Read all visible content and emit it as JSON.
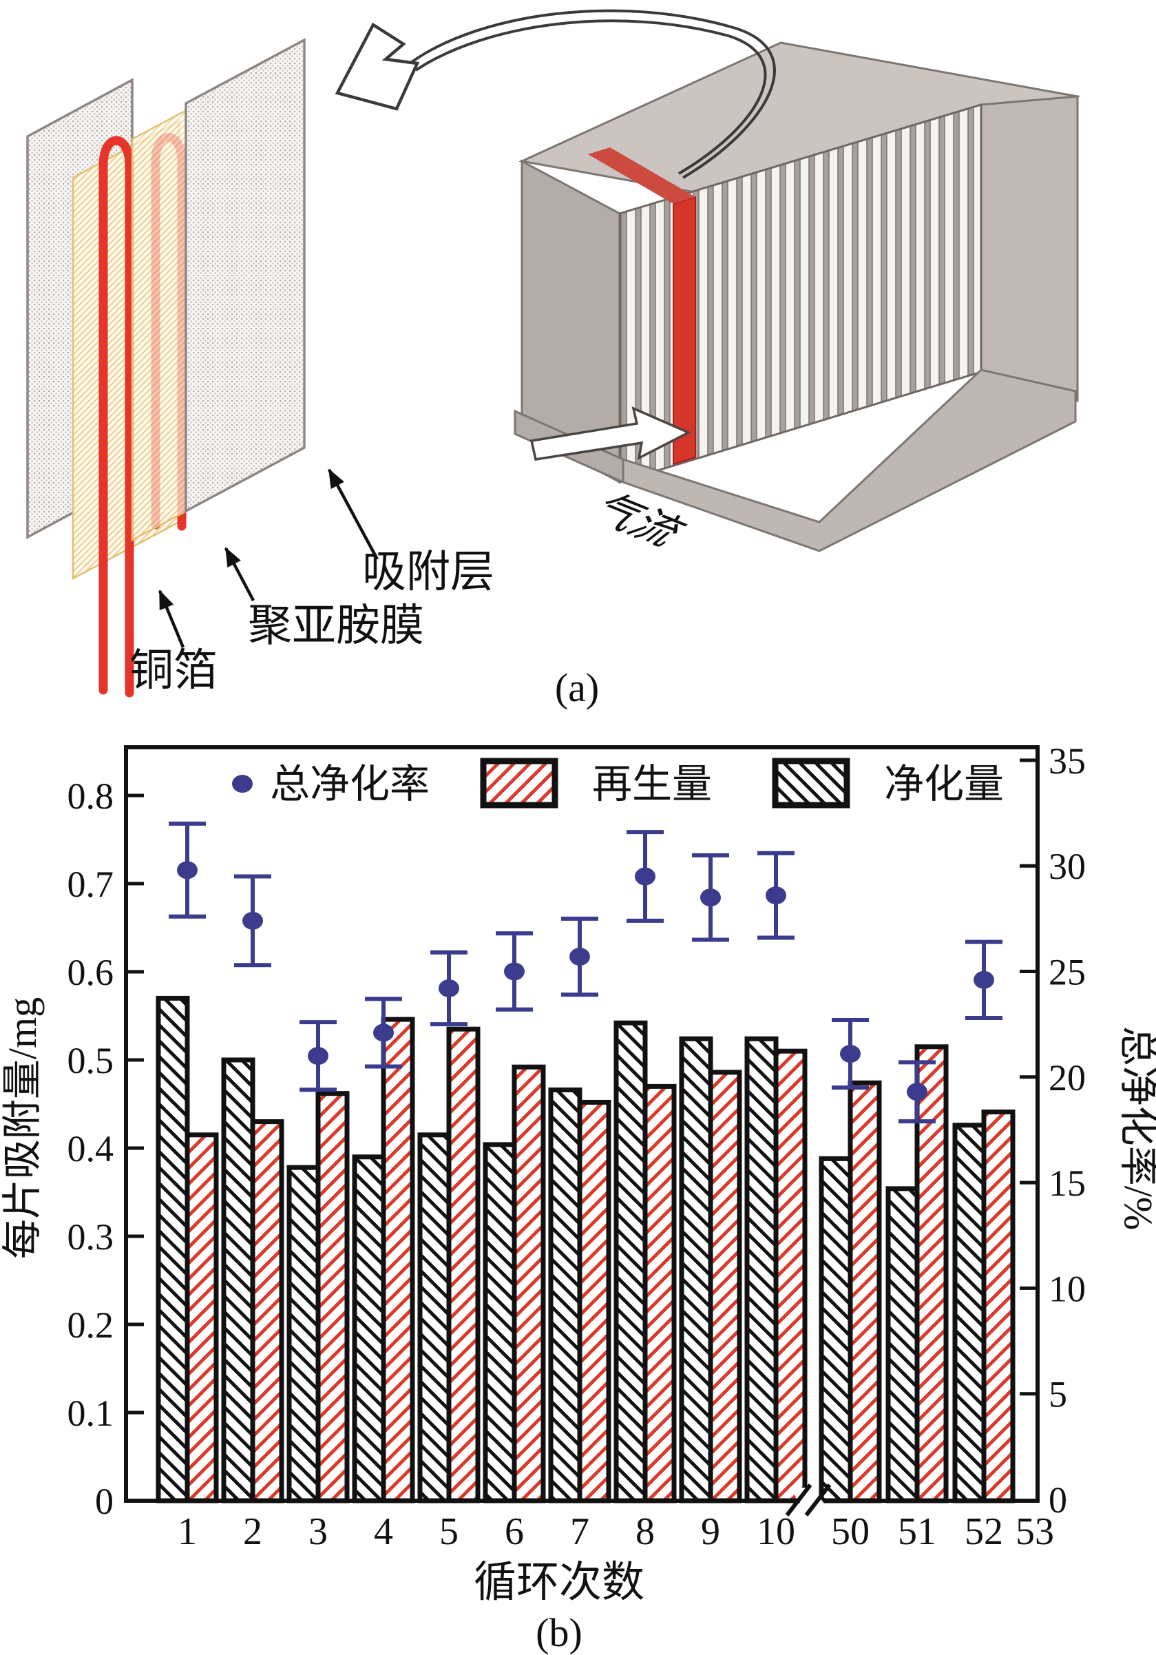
{
  "figure": {
    "panel_a": {
      "caption": "(a)",
      "labels": {
        "copper_foil": "铜箔",
        "polyimide_film": "聚亚胺膜",
        "adsorption_layer": "吸附层",
        "airflow": "气流"
      }
    },
    "panel_b": {
      "caption": "(b)"
    }
  },
  "chart_data": {
    "type": "bar",
    "title": "",
    "xlabel": "循环次数",
    "categories": [
      "1",
      "2",
      "3",
      "4",
      "5",
      "6",
      "7",
      "8",
      "9",
      "10",
      "50",
      "51",
      "52"
    ],
    "x_tick_labels": [
      "1",
      "2",
      "3",
      "4",
      "5",
      "6",
      "7",
      "8",
      "9",
      "10",
      "50",
      "51",
      "52",
      "53"
    ],
    "axis_break_after_index": 9,
    "y_left": {
      "label": "每片吸附量/mg",
      "ticks": [
        0,
        0.1,
        0.2,
        0.3,
        0.4,
        0.5,
        0.6,
        0.7,
        0.8
      ],
      "lim": [
        0,
        0.855
      ]
    },
    "y_right": {
      "label": "总净化率/%",
      "ticks": [
        0,
        5,
        10,
        15,
        20,
        25,
        30,
        35
      ],
      "lim": [
        0,
        35.7
      ]
    },
    "legend_position": "top-inside",
    "grid": false,
    "series": [
      {
        "name": "净化量",
        "type": "bar",
        "hatch": "\\",
        "color": "#1a1a1a",
        "values": [
          0.57,
          0.5,
          0.378,
          0.39,
          0.415,
          0.404,
          0.466,
          0.542,
          0.524,
          0.524,
          0.388,
          0.354,
          0.426
        ]
      },
      {
        "name": "再生量",
        "type": "bar",
        "hatch": "/",
        "color": "#d93a2b",
        "values": [
          0.415,
          0.43,
          0.462,
          0.546,
          0.535,
          0.492,
          0.452,
          0.47,
          0.486,
          0.51,
          0.474,
          0.515,
          0.441
        ]
      },
      {
        "name": "总净化率",
        "type": "scatter",
        "axis": "right",
        "color": "#3c3c8e",
        "values": [
          29.8,
          27.4,
          21.0,
          22.1,
          24.2,
          25.0,
          25.7,
          29.5,
          28.5,
          28.6,
          21.1,
          19.3,
          24.6
        ],
        "errors": [
          2.2,
          2.1,
          1.6,
          1.6,
          1.7,
          1.8,
          1.8,
          2.1,
          2.0,
          2.0,
          1.6,
          1.4,
          1.8
        ]
      }
    ]
  },
  "colors": {
    "bar_red": "#d93a2b",
    "bar_outline": "#111111",
    "scatter_navy": "#3c3c8e",
    "foil_red": "#e5352b",
    "plate_red": "#d8352a",
    "panel_yellow": "#ecca80",
    "box_gray": "#c6bfbb"
  }
}
